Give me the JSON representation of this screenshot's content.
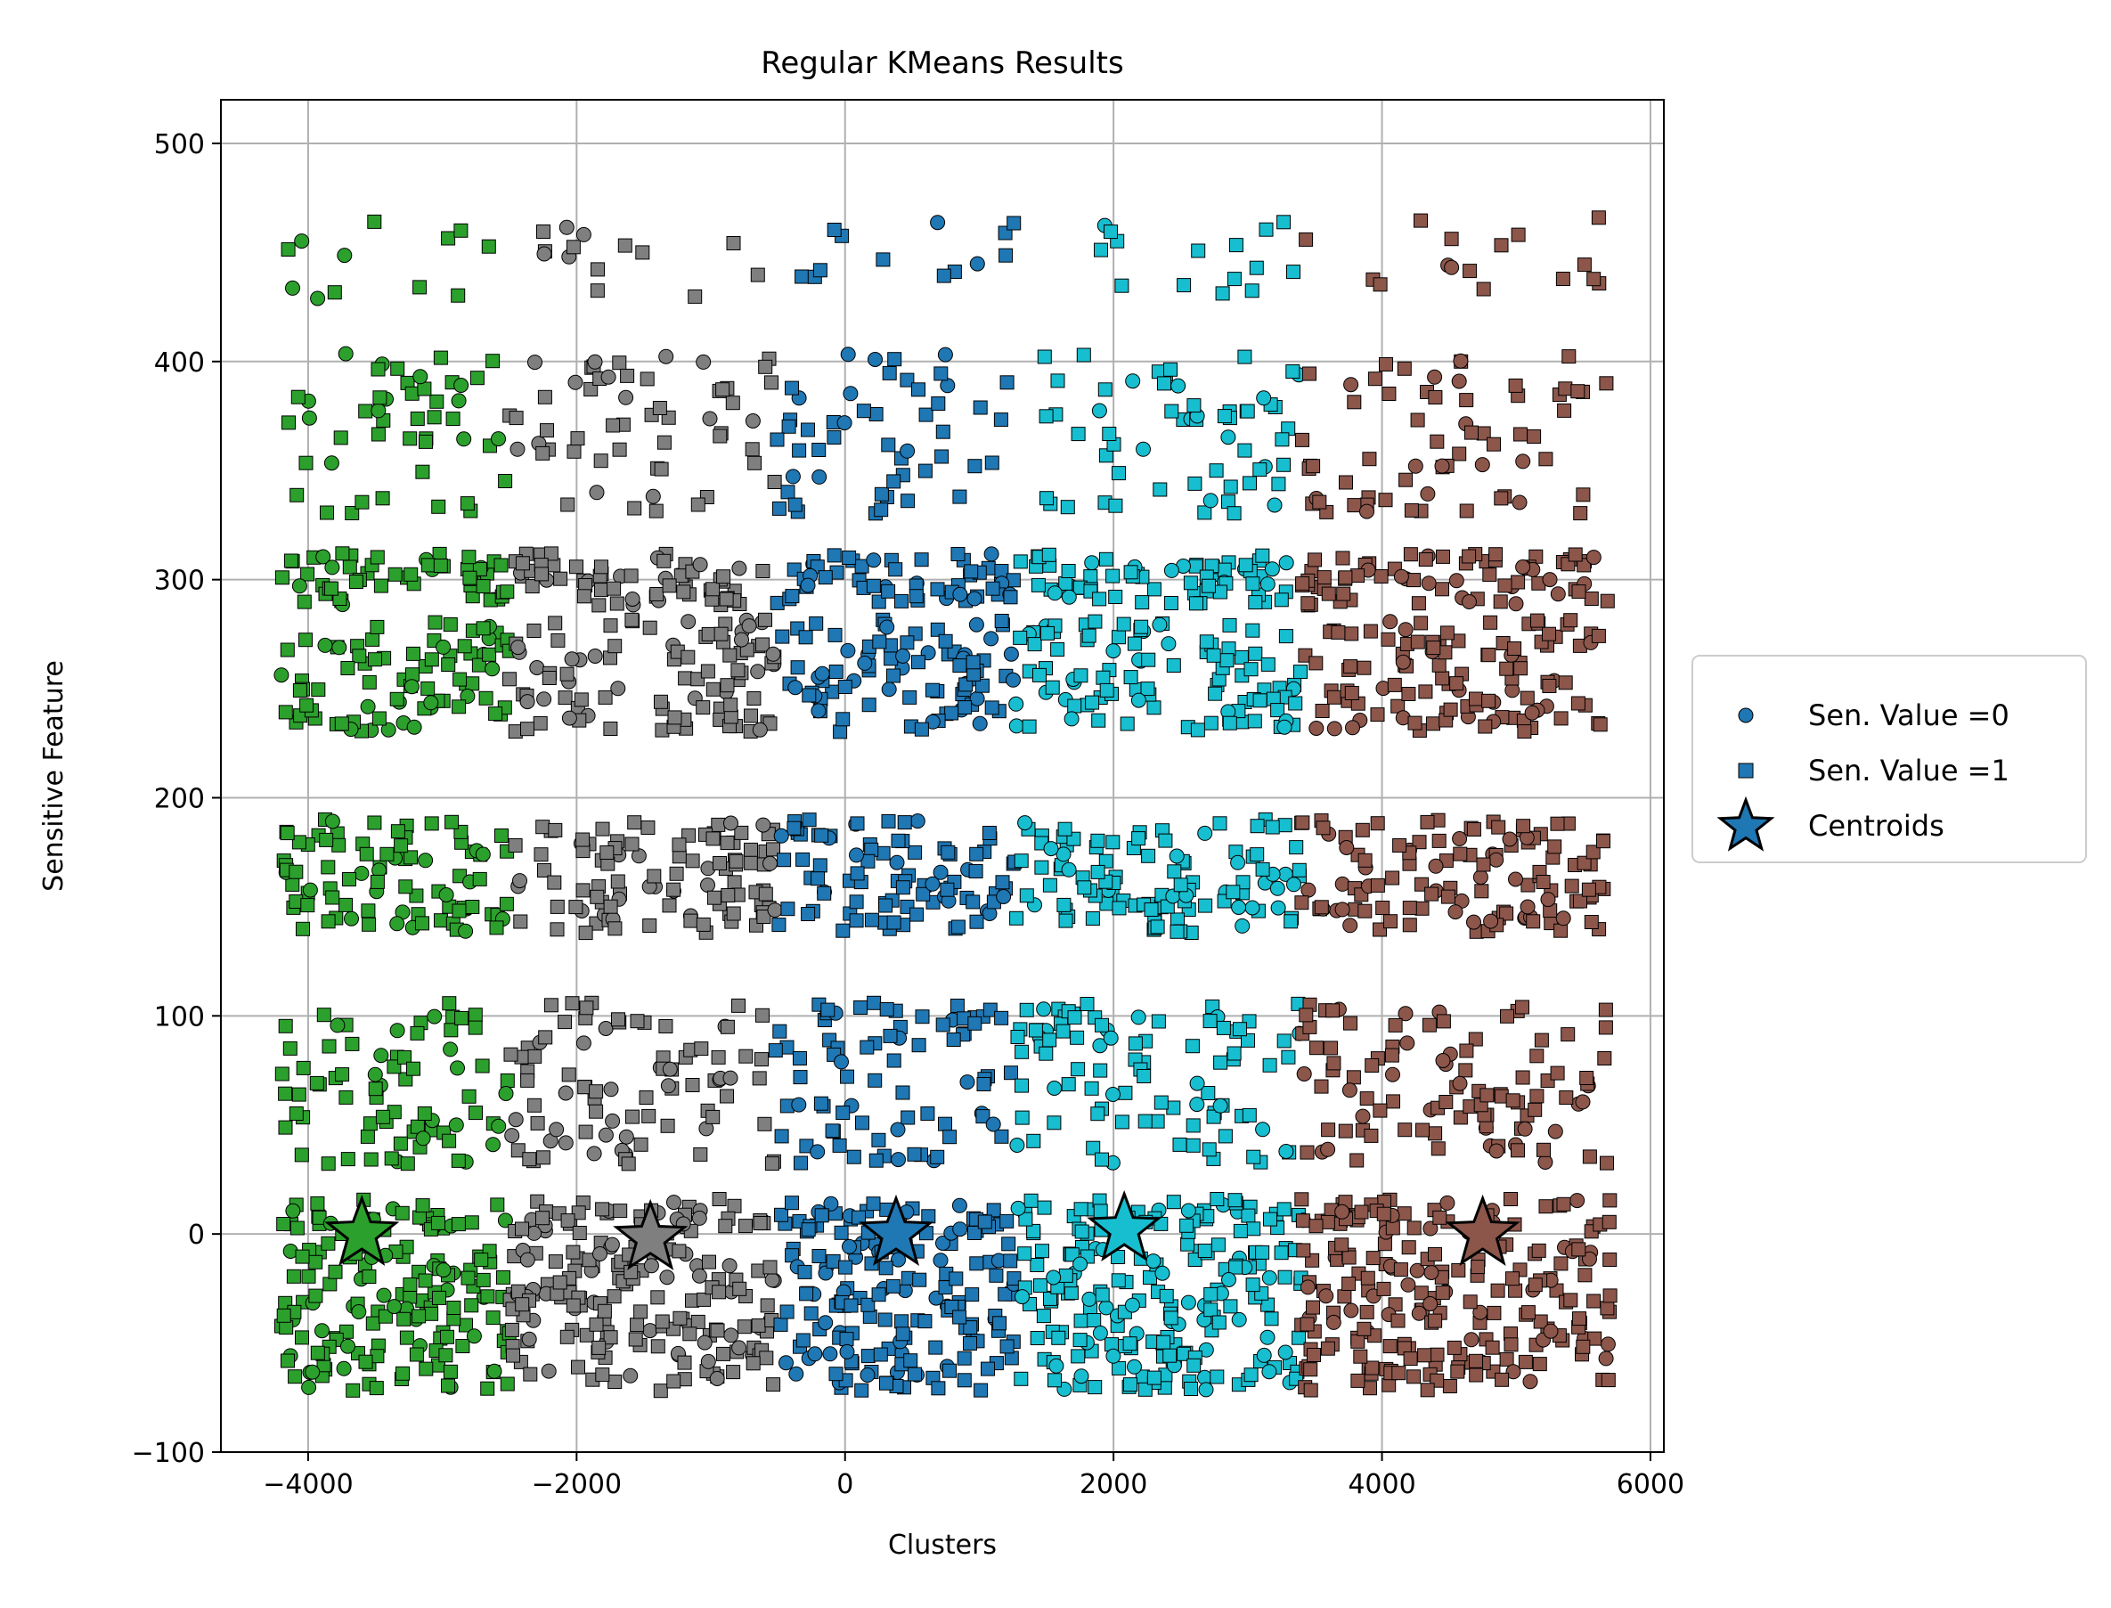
{
  "chart_data": {
    "type": "scatter",
    "title": "Regular KMeans Results",
    "xlabel": "Clusters",
    "ylabel": "Sensitive Feature",
    "xlim": [
      -4650,
      6100
    ],
    "ylim": [
      -100,
      520
    ],
    "xticks": [
      -4000,
      -2000,
      0,
      2000,
      4000,
      6000
    ],
    "xtick_labels": [
      "−4000",
      "−2000",
      "0",
      "2000",
      "4000",
      "6000"
    ],
    "yticks": [
      -100,
      0,
      100,
      200,
      300,
      400,
      500
    ],
    "ytick_labels": [
      "−100",
      "0",
      "100",
      "200",
      "300",
      "400",
      "500"
    ],
    "grid": true,
    "legend_position": "outside-right",
    "legend": [
      {
        "label": "Sen. Value =0",
        "marker": "circle"
      },
      {
        "label": "Sen. Value =1",
        "marker": "square"
      },
      {
        "label": "Centroids",
        "marker": "star"
      }
    ],
    "legend_marker_color": "#1f77b4",
    "clusters": [
      {
        "color": "#2ca02c",
        "x_range": [
          -4200,
          -2500
        ],
        "centroid": [
          -3600,
          0
        ]
      },
      {
        "color": "#7f7f7f",
        "x_range": [
          -2500,
          -520
        ],
        "centroid": [
          -1450,
          -2
        ]
      },
      {
        "color": "#1f77b4",
        "x_range": [
          -520,
          1270
        ],
        "centroid": [
          380,
          0
        ]
      },
      {
        "color": "#17becf",
        "x_range": [
          1270,
          3400
        ],
        "centroid": [
          2080,
          2
        ]
      },
      {
        "color": "#8c564b",
        "x_range": [
          3400,
          5700
        ],
        "centroid": [
          4750,
          0
        ]
      }
    ],
    "y_bands": [
      {
        "y_range": [
          -72,
          -4
        ],
        "density": 1.0
      },
      {
        "y_range": [
          0,
          16
        ],
        "density": 0.45
      },
      {
        "y_range": [
          32,
          106
        ],
        "density": 0.55
      },
      {
        "y_range": [
          138,
          190
        ],
        "density": 0.75
      },
      {
        "y_range": [
          230,
          282
        ],
        "density": 0.7
      },
      {
        "y_range": [
          288,
          312
        ],
        "density": 0.6
      },
      {
        "y_range": [
          330,
          404
        ],
        "density": 0.35
      },
      {
        "y_range": [
          428,
          466
        ],
        "density": 0.12
      }
    ],
    "sensitive_values": [
      0,
      1
    ]
  }
}
